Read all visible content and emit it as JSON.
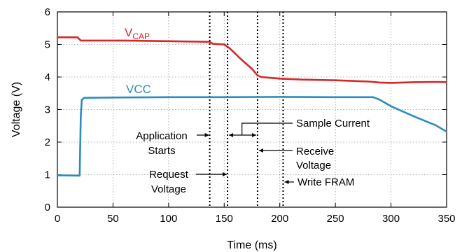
{
  "chart_data": {
    "type": "line",
    "title": "",
    "xlabel": "Time (ms)",
    "ylabel": "Voltage (V)",
    "xlim": [
      0,
      350
    ],
    "ylim": [
      0,
      6
    ],
    "xticks": [
      0,
      50,
      100,
      150,
      200,
      250,
      300,
      350
    ],
    "yticks": [
      0,
      1,
      2,
      3,
      4,
      5,
      6
    ],
    "grid": true,
    "series": [
      {
        "name": "VCAP",
        "label_main": "V",
        "label_sub": "CAP",
        "color": "#d62728",
        "points": [
          [
            0,
            5.22
          ],
          [
            18,
            5.22
          ],
          [
            21,
            5.12
          ],
          [
            60,
            5.12
          ],
          [
            100,
            5.1
          ],
          [
            137,
            5.08
          ],
          [
            140,
            5.02
          ],
          [
            150,
            5.0
          ],
          [
            155,
            4.88
          ],
          [
            165,
            4.55
          ],
          [
            175,
            4.25
          ],
          [
            180,
            4.05
          ],
          [
            183,
            4.0
          ],
          [
            200,
            3.95
          ],
          [
            220,
            3.92
          ],
          [
            250,
            3.9
          ],
          [
            280,
            3.86
          ],
          [
            290,
            3.83
          ],
          [
            300,
            3.82
          ],
          [
            320,
            3.84
          ],
          [
            340,
            3.85
          ],
          [
            350,
            3.84
          ]
        ]
      },
      {
        "name": "VCC",
        "label_main": "VCC",
        "label_sub": "",
        "color": "#2b8cbe",
        "points": [
          [
            0,
            0.98
          ],
          [
            20,
            0.97
          ],
          [
            21,
            2.8
          ],
          [
            22,
            3.3
          ],
          [
            24,
            3.36
          ],
          [
            50,
            3.37
          ],
          [
            100,
            3.38
          ],
          [
            150,
            3.38
          ],
          [
            200,
            3.39
          ],
          [
            250,
            3.38
          ],
          [
            284,
            3.38
          ],
          [
            290,
            3.3
          ],
          [
            300,
            3.1
          ],
          [
            320,
            2.8
          ],
          [
            340,
            2.52
          ],
          [
            350,
            2.32
          ]
        ]
      }
    ],
    "markers": [
      {
        "x": 137,
        "name": "application-starts"
      },
      {
        "x": 153,
        "name": "request-voltage"
      },
      {
        "x": 180,
        "name": "receive-voltage"
      },
      {
        "x": 203,
        "name": "write-fram"
      }
    ],
    "annotations": [
      {
        "name": "application-starts",
        "lines": [
          "Application",
          "Starts"
        ]
      },
      {
        "name": "request-voltage",
        "lines": [
          "Request",
          "Voltage"
        ]
      },
      {
        "name": "sample-current",
        "lines": [
          "Sample Current"
        ]
      },
      {
        "name": "receive-voltage",
        "lines": [
          "Receive",
          "Voltage"
        ]
      },
      {
        "name": "write-fram",
        "lines": [
          "Write FRAM"
        ]
      }
    ]
  }
}
